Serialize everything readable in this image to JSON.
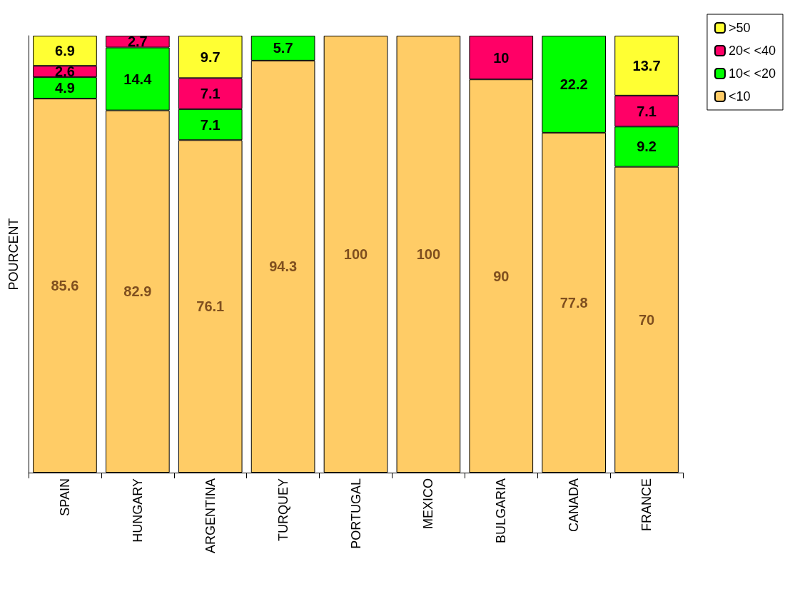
{
  "chart_data": {
    "type": "bar",
    "stacked": true,
    "ylabel": "POURCENT",
    "categories": [
      "SPAIN",
      "HUNGARY",
      "ARGENTINA",
      "TURQUEY",
      "PORTUGAL",
      "MEXICO",
      "BULGARIA",
      "CANADA",
      "FRANCE"
    ],
    "series": [
      {
        "name": "<10",
        "color": "#ffcc66",
        "values": [
          85.6,
          82.9,
          76.1,
          94.3,
          100,
          100,
          90,
          77.8,
          70
        ]
      },
      {
        "name": "10< <20",
        "color": "#00ff00",
        "values": [
          4.9,
          14.4,
          7.1,
          5.7,
          null,
          null,
          null,
          22.2,
          9.2
        ]
      },
      {
        "name": "20< <40",
        "color": "#ff0066",
        "values": [
          2.6,
          2.7,
          7.1,
          null,
          null,
          null,
          10,
          null,
          7.1
        ]
      },
      {
        "name": ">50",
        "color": "#ffff33",
        "values": [
          6.9,
          null,
          9.7,
          null,
          null,
          null,
          null,
          null,
          13.7
        ]
      }
    ],
    "ylim": [
      0,
      100
    ],
    "data_labels": true,
    "legend": "top right",
    "grid": false,
    "tick_labels": "x"
  }
}
